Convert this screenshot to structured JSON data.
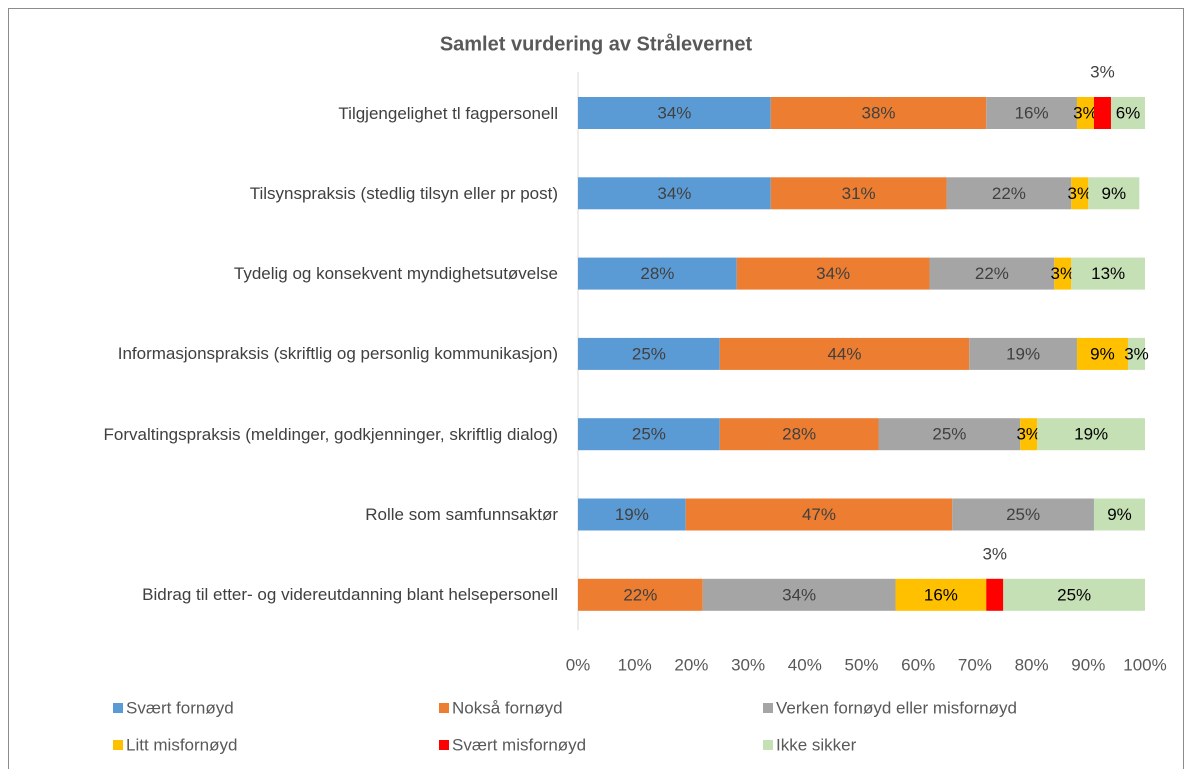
{
  "chart_data": {
    "type": "stacked-barh",
    "title": "Samlet vurdering av Strålevernet",
    "categories": [
      "Tilgjengelighet tl fagpersonell",
      "Tilsynspraksis (stedlig tilsyn eller pr post)",
      "Tydelig og konsekvent myndighetsutøvelse",
      "Informasjonspraksis (skriftlig og personlig kommunikasjon)",
      "Forvaltingspraksis (meldinger, godkjenninger, skriftlig dialog)",
      "Rolle som samfunnsaktør",
      "Bidrag til etter- og videreutdanning blant helsepersonell"
    ],
    "series": [
      {
        "name": "Svært fornøyd",
        "color": "#5b9bd5",
        "values": [
          34,
          34,
          28,
          25,
          25,
          19,
          null
        ],
        "value_labels": [
          "34%",
          "34%",
          "28%",
          "25%",
          "25%",
          "19%",
          null
        ]
      },
      {
        "name": "Nokså fornøyd",
        "color": "#ed7d31",
        "values": [
          38,
          31,
          34,
          44,
          28,
          47,
          22
        ],
        "value_labels": [
          "38%",
          "31%",
          "34%",
          "44%",
          "28%",
          "47%",
          "22%"
        ]
      },
      {
        "name": "Verken fornøyd eller misfornøyd",
        "color": "#a5a5a5",
        "values": [
          16,
          22,
          22,
          19,
          25,
          25,
          34
        ],
        "value_labels": [
          "16%",
          "22%",
          "22%",
          "19%",
          "25%",
          "25%",
          "34%"
        ]
      },
      {
        "name": "Litt misfornøyd",
        "color": "#ffc000",
        "values": [
          3,
          3,
          3,
          9,
          3,
          null,
          16
        ],
        "value_labels": [
          "3%",
          "3%",
          "3%",
          "9%",
          "3%",
          null,
          "16%"
        ]
      },
      {
        "name": "Svært misfornøyd",
        "color": "#ff0000",
        "values": [
          3,
          null,
          null,
          null,
          null,
          null,
          3
        ],
        "value_labels": [
          "3%",
          null,
          null,
          null,
          null,
          null,
          "3%"
        ]
      },
      {
        "name": "Ikke sikker",
        "color": "#c5e0b4",
        "values": [
          6,
          9,
          13,
          3,
          19,
          9,
          25
        ],
        "value_labels": [
          "6%",
          "9%",
          "13%",
          "3%",
          "19%",
          "9%",
          "25%"
        ]
      }
    ],
    "xlim": [
      0,
      100
    ],
    "xticks": [
      {
        "value": 0,
        "label": "0%"
      },
      {
        "value": 10,
        "label": "10%"
      },
      {
        "value": 20,
        "label": "20%"
      },
      {
        "value": 30,
        "label": "30%"
      },
      {
        "value": 40,
        "label": "40%"
      },
      {
        "value": 50,
        "label": "50%"
      },
      {
        "value": 60,
        "label": "60%"
      },
      {
        "value": 70,
        "label": "70%"
      },
      {
        "value": 80,
        "label": "80%"
      },
      {
        "value": 90,
        "label": "90%"
      },
      {
        "value": 100,
        "label": "100%"
      }
    ],
    "legend": "bottom"
  }
}
